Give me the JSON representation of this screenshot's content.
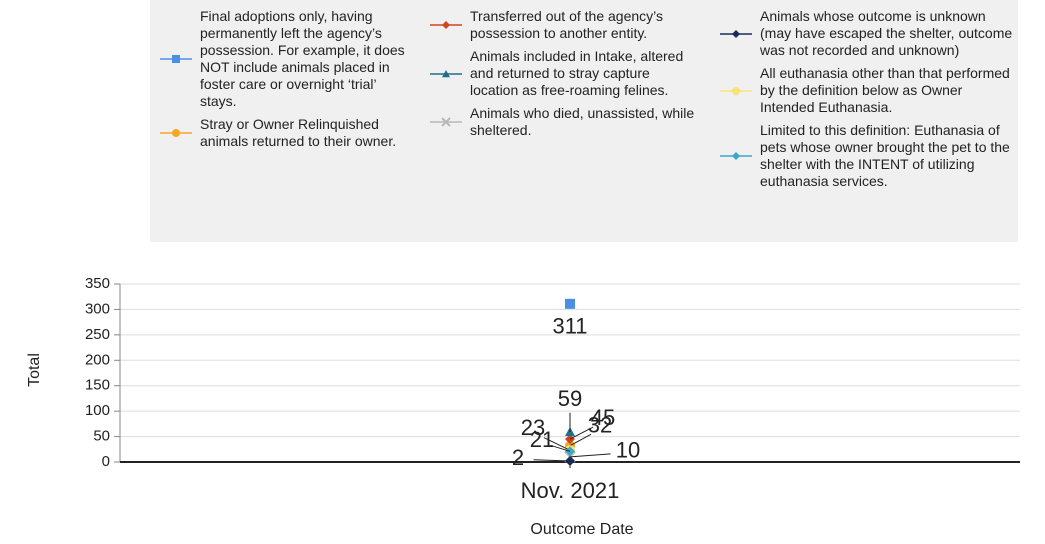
{
  "chart_data": {
    "type": "line",
    "categories": [
      "Nov. 2021"
    ],
    "series": [
      {
        "name": "Final adoptions only, having permanently left the agency’s possession. For example, it does NOT include animals placed in foster care or overnight ‘trial’ stays.",
        "color": "#4a90e2",
        "marker": "square",
        "values": [
          311
        ]
      },
      {
        "name": "Stray or Owner Relinquished animals returned to their owner.",
        "color": "#f5a623",
        "marker": "circle",
        "values": [
          32
        ]
      },
      {
        "name": "Transferred out of the agency’s possession to another entity.",
        "color": "#d0461c",
        "marker": "diamond",
        "values": [
          45
        ]
      },
      {
        "name": "Animals included in Intake, altered and returned to stray capture location as free-roaming felines.",
        "color": "#1f6f8b",
        "marker": "triangle",
        "values": [
          59
        ]
      },
      {
        "name": "Animals who died, unassisted, while sheltered.",
        "color": "#b8b8b8",
        "marker": "cross",
        "values": [
          10
        ]
      },
      {
        "name": "Animals whose outcome is unknown (may have escaped the shelter, outcome was not recorded and unknown)",
        "color": "#1a2a5a",
        "marker": "diamond",
        "values": [
          2
        ]
      },
      {
        "name": "All euthanasia other than that performed by the definition below as Owner Intended Euthanasia.",
        "color": "#f8e27a",
        "marker": "circle",
        "values": [
          23
        ]
      },
      {
        "name": "Limited to this definition: Euthanasia of pets whose owner brought the pet to the shelter with the INTENT of utilizing euthanasia services.",
        "color": "#3aa6c9",
        "marker": "diamond",
        "values": [
          21
        ]
      }
    ],
    "x_label": "Outcome Date",
    "y_label": "Total",
    "ylim": [
      0,
      350
    ],
    "yticks": [
      0,
      50,
      100,
      150,
      200,
      250,
      300,
      350
    ],
    "grid": true
  }
}
